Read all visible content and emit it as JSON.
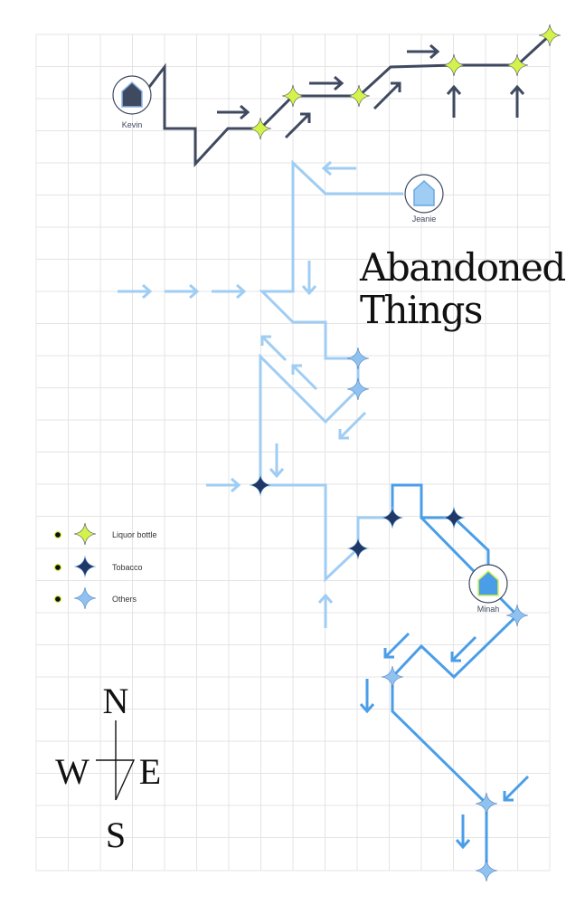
{
  "title": {
    "line1": "Abandoned",
    "line2": "Things"
  },
  "persons": [
    {
      "name": "Kevin",
      "color": "#3f4a60",
      "track": "dark"
    },
    {
      "name": "Jeanie",
      "color": "#9fcdf3",
      "track": "light"
    },
    {
      "name": "Minah",
      "color": "#4a9ee8",
      "track": "medium"
    }
  ],
  "legend": [
    {
      "label": "Liquor bottle",
      "color": "#d4f34a",
      "icon": "star-icon"
    },
    {
      "label": "Tobacco",
      "color": "#1f3868",
      "icon": "star-icon"
    },
    {
      "label": "Others",
      "color": "#8fc2ef",
      "icon": "star-icon"
    }
  ],
  "compass": {
    "north": "N",
    "south": "S",
    "east": "E",
    "west": "W"
  },
  "colors": {
    "grid": "#e4e4e4",
    "kevin_path": "#3f4a60",
    "jeanie_path": "#9fcdf3",
    "minah_path": "#4a9ee8",
    "liquor": "#d4f34a",
    "tobacco": "#1f3868",
    "others": "#8fc2ef"
  }
}
